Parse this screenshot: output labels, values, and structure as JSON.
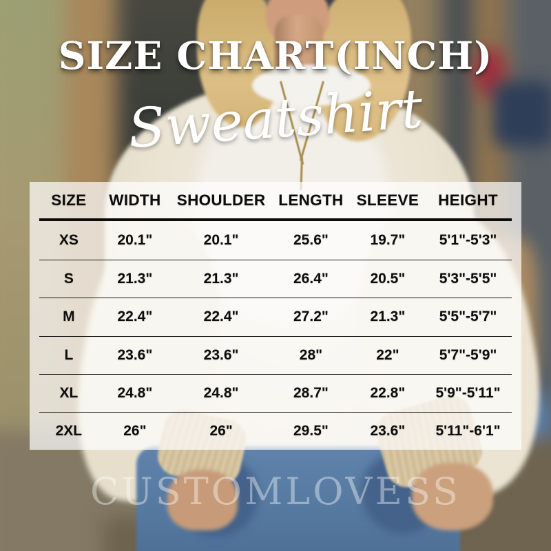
{
  "title": "SIZE CHART(INCH)",
  "subtitle": "Sweatshirt",
  "watermark": "CUSTOMLOVESS",
  "colors": {
    "title_text": "#ffffff",
    "table_text": "#0d0d0d",
    "panel_background": "rgba(255,255,255,0.70)",
    "watermark_text": "rgba(255,255,255,0.40)",
    "sweatshirt_beige": "#e9e3d4",
    "jeans_blue": "#5d81a9"
  },
  "chart_data": {
    "type": "table",
    "title": "SIZE CHART(INCH)",
    "subtitle": "Sweatshirt",
    "unit": "inch",
    "columns": [
      "SIZE",
      "WIDTH",
      "SHOULDER",
      "LENGTH",
      "SLEEVE",
      "HEIGHT"
    ],
    "rows": [
      [
        "XS",
        "20.1\"",
        "20.1\"",
        "25.6\"",
        "19.7\"",
        "5'1\"-5'3\""
      ],
      [
        "S",
        "21.3\"",
        "21.3\"",
        "26.4\"",
        "20.5\"",
        "5'3\"-5'5\""
      ],
      [
        "M",
        "22.4\"",
        "22.4\"",
        "27.2\"",
        "21.3\"",
        "5'5\"-5'7\""
      ],
      [
        "L",
        "23.6\"",
        "23.6\"",
        "28\"",
        "22\"",
        "5'7\"-5'9\""
      ],
      [
        "XL",
        "24.8\"",
        "24.8\"",
        "28.7\"",
        "22.8\"",
        "5'9\"-5'11\""
      ],
      [
        "2XL",
        "26\"",
        "26\"",
        "29.5\"",
        "23.6\"",
        "5'11\"-6'1\""
      ]
    ]
  }
}
